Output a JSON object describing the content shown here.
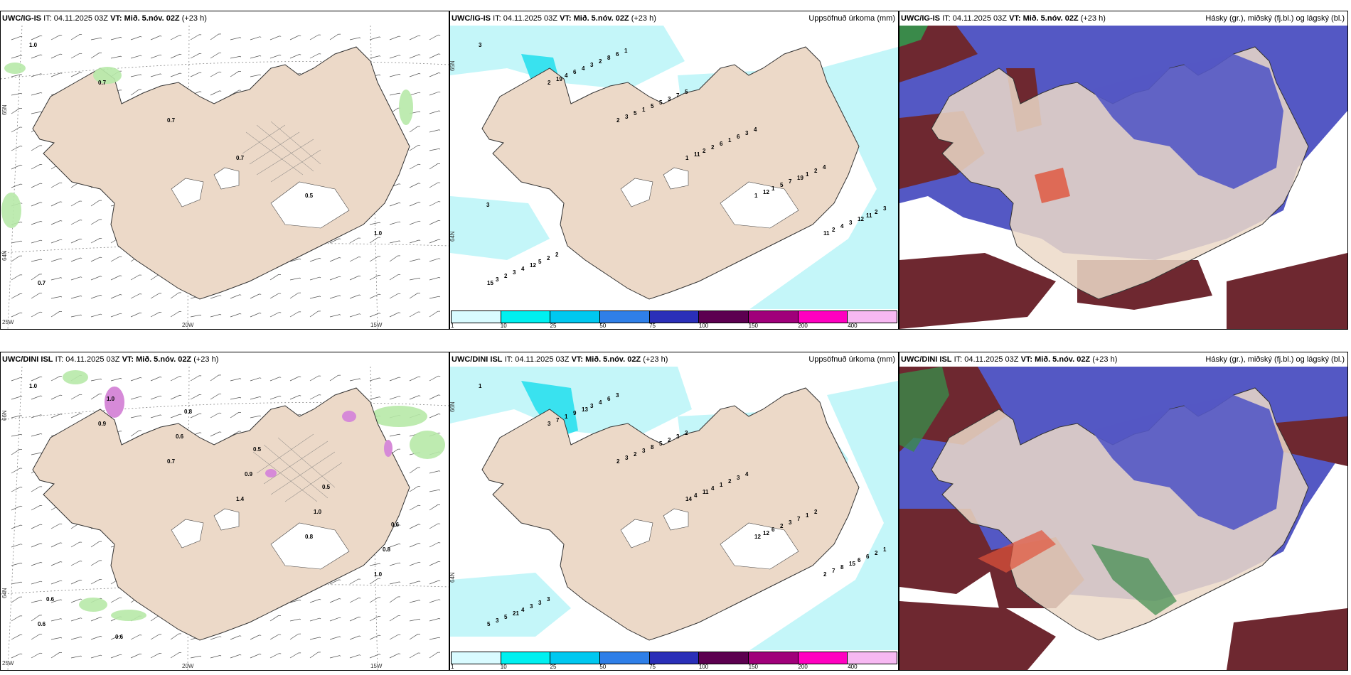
{
  "panels": {
    "top_wind": {
      "model": "UWC/IG-IS",
      "it_label": "IT:",
      "it_value": "04.11.2025 03Z",
      "vt_label": "VT:",
      "vt_value": "Mið. 5.nóv. 02Z",
      "lead": "(+23 h)",
      "lat_labels": [
        "65N",
        "64N"
      ],
      "lon_labels": [
        "25W",
        "20W",
        "15W"
      ],
      "values": [
        "1.0",
        "0.7",
        "0.7",
        "0.7",
        "0.5",
        "1.0",
        "0.7"
      ]
    },
    "top_precip": {
      "model": "UWC/IG-IS",
      "it_label": "IT:",
      "it_value": "04.11.2025 03Z",
      "vt_label": "VT:",
      "vt_value": "Mið. 5.nóv. 02Z",
      "lead": "(+23 h)",
      "title": "Uppsöfnuð úrkoma (mm)",
      "lat_labels": [
        "65N",
        "64N"
      ],
      "values": [
        "3",
        "2",
        "2",
        "1",
        "1",
        "11",
        "15",
        "19",
        "3",
        "11",
        "12",
        "2",
        "3",
        "4",
        "5",
        "2",
        "1",
        "4",
        "2",
        "6",
        "1",
        "2",
        "5",
        "3",
        "3",
        "4",
        "5",
        "6",
        "7",
        "12",
        "4",
        "3",
        "5",
        "1",
        "19",
        "11",
        "12",
        "2",
        "3",
        "6",
        "1",
        "2",
        "5",
        "8",
        "7",
        "3",
        "2",
        "3",
        "2",
        "6",
        "5",
        "4",
        "4",
        "3",
        "2",
        "1"
      ]
    },
    "top_cloud": {
      "model": "UWC/IG-IS",
      "it_label": "IT:",
      "it_value": "04.11.2025 03Z",
      "vt_label": "VT:",
      "vt_value": "Mið. 5.nóv. 02Z",
      "lead": "(+23 h)",
      "title": "Hásky (gr.), miðský (fj.bl.) og lágský (bl.)"
    },
    "bottom_wind": {
      "model": "UWC/DINI ISL",
      "it_label": "IT:",
      "it_value": "04.11.2025 03Z",
      "vt_label": "VT:",
      "vt_value": "Mið. 5.nóv. 02Z",
      "lead": "(+23 h)",
      "lat_labels": [
        "66N",
        "64N"
      ],
      "lon_labels": [
        "25W",
        "20W",
        "15W"
      ],
      "values": [
        "1.0",
        "0.9",
        "0.7",
        "1.4",
        "0.8",
        "1.0",
        "0.6",
        "1.0",
        "0.6",
        "0.9",
        "1.0",
        "0.8",
        "0.6",
        "0.6",
        "0.8",
        "0.5",
        "0.5",
        "0.6"
      ]
    },
    "bottom_precip": {
      "model": "UWC/DINI ISL",
      "it_label": "IT:",
      "it_value": "04.11.2025 03Z",
      "vt_label": "VT:",
      "vt_value": "Mið. 5.nóv. 02Z",
      "lead": "(+23 h)",
      "title": "Uppsöfnuð úrkoma (mm)",
      "lat_labels": [
        "66N",
        "64N"
      ],
      "values": [
        "1",
        "3",
        "2",
        "14",
        "12",
        "2",
        "5",
        "7",
        "3",
        "4",
        "12",
        "7",
        "3",
        "1",
        "2",
        "11",
        "6",
        "8",
        "5",
        "9",
        "3",
        "4",
        "2",
        "15",
        "21",
        "13",
        "8",
        "1",
        "3",
        "6",
        "4",
        "3",
        "5",
        "2",
        "7",
        "6",
        "3",
        "4",
        "2",
        "3",
        "1",
        "2",
        "3",
        "6",
        "3",
        "4",
        "2",
        "1",
        "3",
        "3",
        "2"
      ]
    },
    "bottom_cloud": {
      "model": "UWC/DINI ISL",
      "it_label": "IT:",
      "it_value": "04.11.2025 03Z",
      "vt_label": "VT:",
      "vt_value": "Mið. 5.nóv. 02Z",
      "lead": "(+23 h)",
      "title": "Hásky (gr.), miðský (fj.bl.) og lágský (bl.)"
    }
  },
  "precip_legend": {
    "colors": [
      "#d9fbff",
      "#00f0f0",
      "#00c8f0",
      "#2f7fe8",
      "#2a2fb8",
      "#5c0050",
      "#a0007a",
      "#ff00c0",
      "#f7b8f2"
    ],
    "ticks": [
      "1",
      "10",
      "25",
      "50",
      "75",
      "100",
      "150",
      "200",
      "400"
    ]
  },
  "colors": {
    "land": "#ecd9c8",
    "precip_light": "#c4f6f9",
    "precip_mid": "#39e2ef",
    "cloud_high": "#6e2830",
    "cloud_mid": "#5458c4",
    "cloud_low": "#3a8a4a"
  }
}
